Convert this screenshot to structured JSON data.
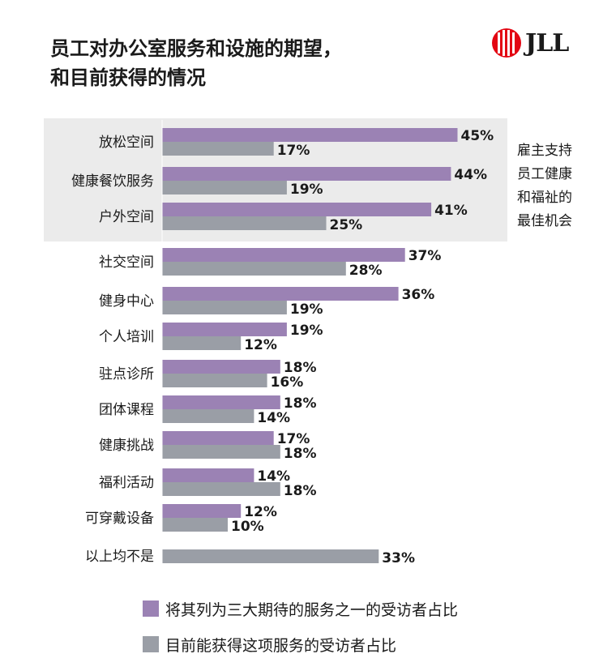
{
  "title_lines": [
    "员工对办公室服务和设施的期望，",
    "和目前获得的情况"
  ],
  "logo": {
    "text": "JLL",
    "icon": "jll-logo-icon"
  },
  "note_lines": [
    "雇主支持",
    "员工健康",
    "和福祉的",
    "最佳机会"
  ],
  "colors": {
    "expected": "#9b82b4",
    "current": "#9a9ea6",
    "highlight_bg": "#ebebeb",
    "logo_red": "#e30613"
  },
  "chart_data": {
    "type": "bar",
    "orientation": "horizontal",
    "categories": [
      "放松空间",
      "健康餐饮服务",
      "户外空间",
      "社交空间",
      "健身中心",
      "个人培训",
      "驻点诊所",
      "团体课程",
      "健康挑战",
      "福利活动",
      "可穿戴设备",
      "以上均不是"
    ],
    "series": [
      {
        "name": "将其列为三大期待的服务之一的受访者占比",
        "values": [
          45,
          44,
          41,
          37,
          36,
          19,
          18,
          18,
          17,
          14,
          12,
          null
        ]
      },
      {
        "name": "目前能获得这项服务的受访者占比",
        "values": [
          17,
          19,
          25,
          28,
          19,
          12,
          16,
          14,
          18,
          18,
          10,
          33
        ]
      }
    ],
    "value_suffix": "%",
    "highlighted_categories": [
      "放松空间",
      "健康餐饮服务",
      "户外空间"
    ],
    "xlim": [
      0,
      45
    ],
    "grid": false,
    "legend": "bottom"
  }
}
